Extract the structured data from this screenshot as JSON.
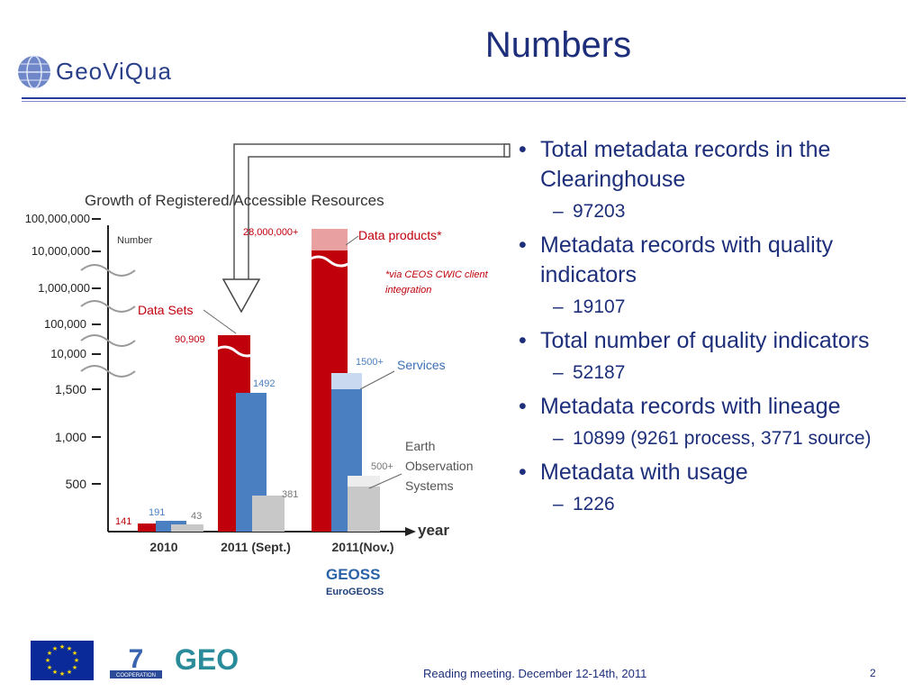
{
  "slide": {
    "title": "Numbers",
    "logo_text": "GeoViQua",
    "footer": "Reading meeting. December 12-14th, 2011",
    "page_number": "2"
  },
  "bullets": [
    {
      "text": "Total metadata records in the Clearinghouse",
      "sub": "97203"
    },
    {
      "text": "Metadata records with quality indicators",
      "sub": "19107"
    },
    {
      "text": "Total number of quality indicators",
      "sub": "52187"
    },
    {
      "text": "Metadata records with lineage",
      "sub": "10899 (9261 process, 3771 source)"
    },
    {
      "text": "Metadata with usage",
      "sub": "1226"
    }
  ],
  "chart": {
    "title": "Growth of Registered/Accessible Resources",
    "ylabel": "Number",
    "xlabel": "year",
    "y_ticks": [
      "100,000,000",
      "10,000,000",
      "1,000,000",
      "100,000",
      "10,000",
      "1,500",
      "1,000",
      "500"
    ],
    "categories": [
      "2010",
      "2011 (Sept.)",
      "2011(Nov.)"
    ],
    "series_labels": {
      "data_sets": "Data Sets",
      "data_products": "Data products*",
      "services": "Services",
      "eos": "Earth Observation Systems",
      "eos_l1": "Earth",
      "eos_l2": "Observation",
      "eos_l3": "Systems"
    },
    "note_l1": "*via CEOS CWIC client",
    "note_l2": "integration",
    "bar_labels": {
      "b2010_red": "141",
      "b2010_blue": "191",
      "b2010_gray": "43",
      "bsept_red": "90,909",
      "bsept_blue": "1492",
      "bsept_gray": "381",
      "bnov_red": "28,000,000+",
      "bnov_blue": "1500+",
      "bnov_gray": "500+"
    },
    "euro_geoss_l1": "GEOSS",
    "euro_geoss_l2": "EuroGEOSS",
    "colors": {
      "red": "#c0000a",
      "blue": "#4a7fc1",
      "gray": "#bdbdbd"
    }
  },
  "chart_data": {
    "type": "bar",
    "title": "Growth of Registered/Accessible Resources",
    "xlabel": "year",
    "ylabel": "Number",
    "categories": [
      "2010",
      "2011 (Sept.)",
      "2011(Nov.)"
    ],
    "series": [
      {
        "name": "Data Sets",
        "values": [
          141,
          90909,
          28000000
        ]
      },
      {
        "name": "Services",
        "values": [
          191,
          1492,
          1500
        ]
      },
      {
        "name": "Earth Observation Systems",
        "values": [
          43,
          381,
          500
        ]
      }
    ]
  },
  "footer_logos": {
    "fp7_label": "COOPERATION",
    "fp7_number": "7",
    "geo_text": "GEO"
  }
}
